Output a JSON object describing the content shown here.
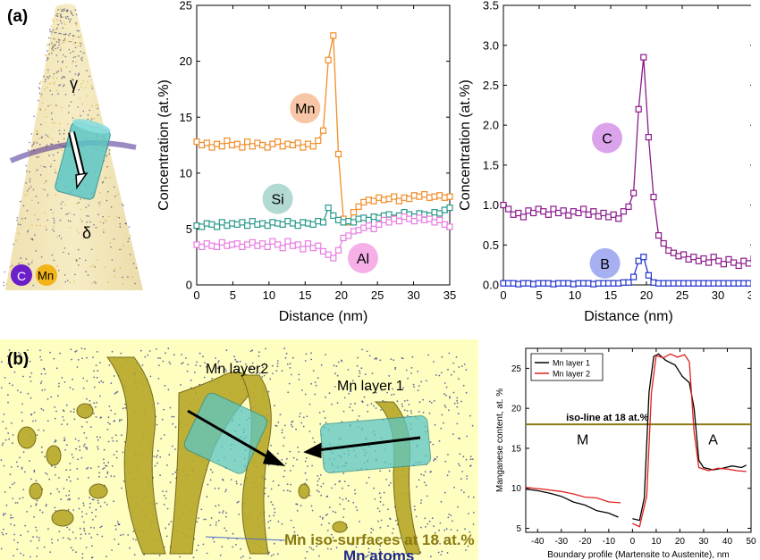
{
  "panel_a_label": "(a)",
  "panel_b_label": "(b)",
  "tomography": {
    "gamma": "γ",
    "delta": "δ",
    "legend_c": "C",
    "legend_mn": "Mn",
    "colors": {
      "c": "#6a1fc9",
      "mn": "#f2b418",
      "cylinder": "#5cc7c7"
    }
  },
  "panel_b": {
    "label1": "Mn layer2",
    "label2": "Mn layer 1",
    "iso_caption": "Mn iso-surfaces at 18 at.%",
    "atoms_caption": "Mn atoms",
    "colors": {
      "iso": "#b0a020",
      "atoms": "#1f2a8c",
      "background": "#fefec0"
    }
  },
  "chart_data": [
    {
      "type": "line",
      "xlabel": "Distance (nm)",
      "ylabel": "Concentration (at.%)",
      "xlim": [
        0,
        35
      ],
      "ylim": [
        0,
        25
      ],
      "xticks": [
        "0",
        "5",
        "10",
        "15",
        "20",
        "25",
        "30",
        "35"
      ],
      "yticks": [
        "0",
        "5",
        "10",
        "15",
        "20",
        "25"
      ],
      "x": [
        0,
        0.7,
        1.4,
        2.1,
        2.8,
        3.5,
        4.2,
        4.9,
        5.6,
        6.3,
        7,
        7.7,
        8.4,
        9.1,
        9.8,
        10.5,
        11.2,
        11.9,
        12.6,
        13.3,
        14,
        14.7,
        15.4,
        16.1,
        16.8,
        17.5,
        18.2,
        18.9,
        19.6,
        20.3,
        21,
        21.7,
        22.4,
        23.1,
        23.8,
        24.5,
        25.2,
        25.9,
        26.6,
        27.3,
        28,
        28.7,
        29.4,
        30.1,
        30.8,
        31.5,
        32.2,
        32.9,
        33.6,
        34.3,
        35
      ],
      "series": [
        {
          "name": "Mn",
          "color": "#f28c28",
          "values": [
            12.8,
            12.5,
            12.7,
            12.3,
            12.6,
            12.4,
            12.9,
            12.5,
            12.6,
            12.3,
            12.8,
            12.4,
            12.7,
            12.5,
            12.3,
            12.6,
            12.8,
            12.4,
            12.6,
            12.5,
            12.7,
            12.3,
            12.6,
            12.4,
            12.9,
            13.8,
            20.1,
            22.3,
            11.7,
            5.9,
            5.6,
            6.5,
            7.0,
            7.4,
            7.6,
            7.5,
            7.8,
            7.6,
            7.7,
            7.9,
            7.5,
            7.8,
            7.7,
            8.0,
            7.9,
            8.1,
            7.8,
            7.9,
            8.0,
            7.8,
            7.9
          ]
        },
        {
          "name": "Si",
          "color": "#2a9a8c",
          "values": [
            5.3,
            5.2,
            5.5,
            5.4,
            5.2,
            5.6,
            5.3,
            5.5,
            5.4,
            5.6,
            5.3,
            5.7,
            5.4,
            5.5,
            5.3,
            5.6,
            5.5,
            5.4,
            5.7,
            5.5,
            5.3,
            5.6,
            5.5,
            5.4,
            5.7,
            5.6,
            6.9,
            6.2,
            5.8,
            5.6,
            5.7,
            5.6,
            5.9,
            6.0,
            5.8,
            6.1,
            6.0,
            6.2,
            6.3,
            6.0,
            6.2,
            6.5,
            6.3,
            6.1,
            6.4,
            6.3,
            6.2,
            6.5,
            6.4,
            6.7,
            6.9
          ]
        },
        {
          "name": "Al",
          "color": "#e87ce0",
          "values": [
            3.6,
            3.4,
            3.7,
            3.5,
            3.4,
            3.8,
            3.5,
            3.6,
            3.7,
            3.4,
            3.6,
            3.8,
            3.5,
            3.7,
            3.4,
            3.9,
            3.6,
            3.3,
            3.9,
            3.5,
            3.6,
            3.2,
            3.7,
            3.3,
            3.5,
            3.0,
            2.7,
            2.4,
            3.1,
            4.2,
            4.4,
            4.8,
            4.9,
            5.1,
            5.3,
            5.0,
            5.4,
            5.8,
            5.6,
            5.9,
            5.7,
            6.1,
            5.9,
            5.7,
            6.0,
            5.8,
            5.9,
            5.6,
            5.8,
            5.4,
            5.2
          ]
        }
      ],
      "bubbles": [
        {
          "text": "Mn",
          "x": 15.0,
          "y": 15.8,
          "color": "#f2a06a"
        },
        {
          "text": "Si",
          "x": 11.2,
          "y": 7.7,
          "color": "#7fbfb4"
        },
        {
          "text": "Al",
          "x": 23.0,
          "y": 2.4,
          "color": "#f27ad8"
        }
      ]
    },
    {
      "type": "line",
      "xlabel": "Distance (nm)",
      "ylabel": "Concentration (at.%)",
      "xlim": [
        0,
        35
      ],
      "ylim": [
        0,
        3.5
      ],
      "xticks": [
        "0",
        "5",
        "10",
        "15",
        "20",
        "25",
        "30",
        "35"
      ],
      "yticks": [
        "0.0",
        "0.5",
        "1.0",
        "1.5",
        "2.0",
        "2.5",
        "3.0",
        "3.5"
      ],
      "x": [
        0,
        0.7,
        1.4,
        2.1,
        2.8,
        3.5,
        4.2,
        4.9,
        5.6,
        6.3,
        7,
        7.7,
        8.4,
        9.1,
        9.8,
        10.5,
        11.2,
        11.9,
        12.6,
        13.3,
        14,
        14.7,
        15.4,
        16.1,
        16.8,
        17.5,
        18.2,
        18.9,
        19.6,
        20.3,
        21,
        21.7,
        22.4,
        23.1,
        23.8,
        24.5,
        25.2,
        25.9,
        26.6,
        27.3,
        28,
        28.7,
        29.4,
        30.1,
        30.8,
        31.5,
        32.2,
        32.9,
        33.6,
        34.3,
        35
      ],
      "series": [
        {
          "name": "C",
          "color": "#8b1a8b",
          "values": [
            1.0,
            0.95,
            0.88,
            0.9,
            0.85,
            0.93,
            0.9,
            0.95,
            0.92,
            0.88,
            0.95,
            0.9,
            0.93,
            0.87,
            0.92,
            0.9,
            0.95,
            0.88,
            0.92,
            0.86,
            0.9,
            0.85,
            0.88,
            0.83,
            0.92,
            0.98,
            1.15,
            2.2,
            2.85,
            1.85,
            1.1,
            0.62,
            0.52,
            0.43,
            0.4,
            0.36,
            0.38,
            0.32,
            0.35,
            0.3,
            0.33,
            0.28,
            0.35,
            0.3,
            0.26,
            0.32,
            0.28,
            0.24,
            0.3,
            0.27,
            0.33
          ]
        },
        {
          "name": "B",
          "color": "#2233cc",
          "values": [
            0.02,
            0.02,
            0.02,
            0.01,
            0.02,
            0.02,
            0.01,
            0.02,
            0.02,
            0.02,
            0.01,
            0.02,
            0.02,
            0.02,
            0.01,
            0.02,
            0.02,
            0.02,
            0.01,
            0.02,
            0.02,
            0.02,
            0.02,
            0.02,
            0.03,
            0.03,
            0.1,
            0.3,
            0.35,
            0.12,
            0.03,
            0.02,
            0.02,
            0.02,
            0.02,
            0.02,
            0.02,
            0.02,
            0.02,
            0.02,
            0.02,
            0.02,
            0.02,
            0.02,
            0.02,
            0.02,
            0.02,
            0.02,
            0.02,
            0.02,
            0.02
          ]
        }
      ],
      "bubbles": [
        {
          "text": "C",
          "x": 14.5,
          "y": 1.84,
          "color": "#c266e0"
        },
        {
          "text": "B",
          "x": 14.2,
          "y": 0.27,
          "color": "#6a7be8"
        }
      ]
    },
    {
      "type": "line",
      "xlabel": "Boundary profile (Martensite to Austenite), nm",
      "ylabel": "Manganese content, at. %",
      "xlim": [
        -45,
        50
      ],
      "ylim": [
        4.5,
        27.5
      ],
      "xticks": [
        "-40",
        "-30",
        "-20",
        "-10",
        "0",
        "10",
        "20",
        "30",
        "40",
        "50"
      ],
      "yticks": [
        "5",
        "10",
        "15",
        "20",
        "25"
      ],
      "legend": "top-left",
      "iso_line": {
        "label": "iso-line at 18 at.%",
        "y": 18,
        "color": "#8a7a10"
      },
      "region_labels": [
        {
          "text": "M",
          "x": -21,
          "y": 15.5
        },
        {
          "text": "A",
          "x": 34,
          "y": 15.5
        }
      ],
      "series": [
        {
          "name": "Mn layer 1",
          "color": "#000000",
          "segments": [
            [
              [
                -45,
                9.9
              ],
              [
                -40,
                9.7
              ],
              [
                -35,
                9.4
              ],
              [
                -30,
                9.0
              ],
              [
                -25,
                8.3
              ],
              [
                -20,
                7.9
              ],
              [
                -15,
                7.2
              ],
              [
                -10,
                6.9
              ],
              [
                -6,
                6.4
              ]
            ],
            [
              [
                0,
                6.2
              ],
              [
                3,
                6.0
              ],
              [
                5,
                8.8
              ],
              [
                7,
                22.0
              ],
              [
                9,
                26.5
              ],
              [
                11,
                26.8
              ],
              [
                14,
                26.0
              ],
              [
                18,
                25.4
              ],
              [
                21,
                24.0
              ],
              [
                24,
                23.2
              ],
              [
                26,
                20.0
              ],
              [
                28,
                13.5
              ],
              [
                30,
                12.6
              ],
              [
                34,
                12.3
              ],
              [
                38,
                12.5
              ],
              [
                42,
                12.8
              ],
              [
                46,
                12.6
              ],
              [
                48,
                12.9
              ]
            ]
          ]
        },
        {
          "name": "Mn layer 2",
          "color": "#e0201c",
          "segments": [
            [
              [
                -45,
                10.1
              ],
              [
                -38,
                9.9
              ],
              [
                -30,
                9.6
              ],
              [
                -25,
                9.3
              ],
              [
                -20,
                8.9
              ],
              [
                -15,
                8.8
              ],
              [
                -10,
                8.3
              ],
              [
                -5,
                8.2
              ]
            ],
            [
              [
                0,
                5.6
              ],
              [
                3,
                5.2
              ],
              [
                6,
                9.0
              ],
              [
                8,
                22.0
              ],
              [
                10,
                26.6
              ],
              [
                13,
                26.3
              ],
              [
                16,
                26.8
              ],
              [
                19,
                26.4
              ],
              [
                22,
                26.7
              ],
              [
                24,
                25.8
              ],
              [
                26,
                17.0
              ],
              [
                28,
                12.6
              ],
              [
                32,
                12.2
              ],
              [
                36,
                12.5
              ],
              [
                40,
                12.4
              ],
              [
                44,
                12.2
              ],
              [
                48,
                12.1
              ]
            ]
          ]
        }
      ]
    }
  ]
}
